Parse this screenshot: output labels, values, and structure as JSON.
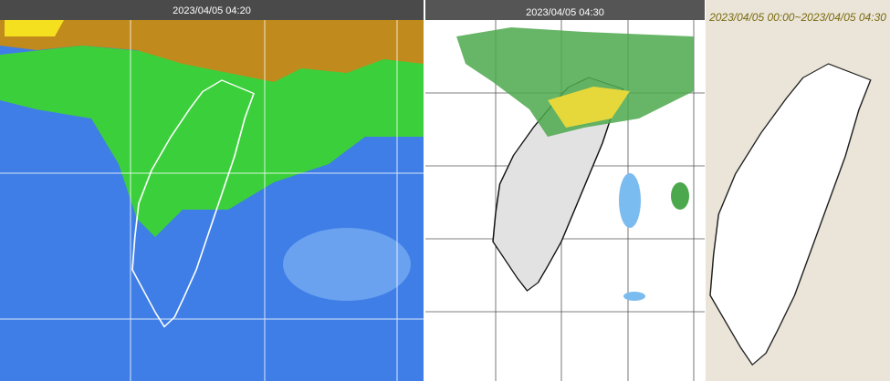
{
  "panels": [
    {
      "title": "2023/04/05 04:20"
    },
    {
      "title": "2023/04/05 04:30"
    },
    {
      "title": "2023/04/05 00:00~2023/04/05 04:30"
    }
  ]
}
